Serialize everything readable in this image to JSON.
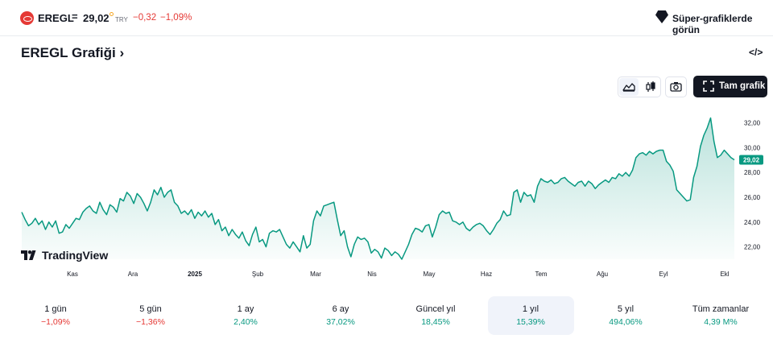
{
  "header": {
    "symbol": "EREGL",
    "equals": "=",
    "price": "29,02",
    "currency": "TRY",
    "change": "−0,32",
    "change_pct": "−1,09%",
    "super_charts_label": "Süper-grafiklerde görün"
  },
  "title": {
    "text": "EREGL Grafiği",
    "chevron": "›",
    "embed_icon": "code-icon",
    "embed_glyph": "</>"
  },
  "toolbar": {
    "fullscreen_label": "Tam grafik",
    "icons": [
      "area-chart-icon",
      "candlestick-icon",
      "camera-icon",
      "fullscreen-icon"
    ]
  },
  "watermark": {
    "text": "TradingView",
    "icon": "tradingview-logo-icon"
  },
  "colors": {
    "accent": "#089981",
    "negative": "#e53935",
    "text": "#131722",
    "active_bg": "#f0f3fa"
  },
  "chart_data": {
    "type": "area",
    "series": [
      {
        "values": [
          24.8,
          24.2,
          23.7,
          23.9,
          24.3,
          23.8,
          24.1,
          23.4,
          24.0,
          23.6,
          24.1,
          23.1,
          23.2,
          23.8,
          23.5,
          23.9,
          24.3,
          24.2,
          24.8,
          25.1,
          25.3,
          24.9,
          24.7,
          25.6,
          25.0,
          24.6,
          25.4,
          25.2,
          24.8,
          25.9,
          25.7,
          26.4,
          26.1,
          25.5,
          26.3,
          26.0,
          25.5,
          24.9,
          25.6,
          26.6,
          26.2,
          26.8,
          26.0,
          26.4,
          26.6,
          25.6,
          25.3,
          24.7,
          24.9,
          24.6,
          25.0,
          24.3,
          24.8,
          24.5,
          24.9,
          24.4,
          24.7,
          23.8,
          24.2,
          23.3,
          23.6,
          22.9,
          23.4,
          23.0,
          22.7,
          23.2,
          22.5,
          22.1,
          23.0,
          23.6,
          22.4,
          22.6,
          22.0,
          23.1,
          23.3,
          23.2,
          23.4,
          22.8,
          22.2,
          21.9,
          22.4,
          22.0,
          21.6,
          22.9,
          21.9,
          22.2,
          24.1,
          24.9,
          24.5,
          25.3,
          25.4,
          25.5,
          25.6,
          24.2,
          22.9,
          23.3,
          22.0,
          21.2,
          22.2,
          22.8,
          22.6,
          22.7,
          22.4,
          21.5,
          21.8,
          21.6,
          21.1,
          21.9,
          21.7,
          21.3,
          21.6,
          21.4,
          21.0,
          21.6,
          22.2,
          23.0,
          23.5,
          23.4,
          23.2,
          23.7,
          23.8,
          22.8,
          23.6,
          24.6,
          24.9,
          24.7,
          24.8,
          24.1,
          24.0,
          23.8,
          24.0,
          23.5,
          23.3,
          23.6,
          23.8,
          23.9,
          23.7,
          23.3,
          23.0,
          23.4,
          23.9,
          24.2,
          24.9,
          24.5,
          24.6,
          26.4,
          26.6,
          25.6,
          26.4,
          26.1,
          26.2,
          25.6,
          26.9,
          27.5,
          27.3,
          27.2,
          27.4,
          27.1,
          27.2,
          27.5,
          27.6,
          27.3,
          27.1,
          26.9,
          27.2,
          27.3,
          26.9,
          27.3,
          27.1,
          26.7,
          27.0,
          27.2,
          27.4,
          27.2,
          27.6,
          27.5,
          27.9,
          27.7,
          28.0,
          27.7,
          28.2,
          29.2,
          29.5,
          29.6,
          29.4,
          29.7,
          29.5,
          29.7,
          29.8,
          29.8,
          28.9,
          28.6,
          28.1,
          26.6,
          26.3,
          26.0,
          25.7,
          25.8,
          27.6,
          28.5,
          30.1,
          31.0,
          31.6,
          32.4,
          30.5,
          29.2,
          29.4,
          29.8,
          29.5,
          29.2,
          29.02
        ]
      }
    ],
    "ylim": [
      21.0,
      33.6
    ],
    "y_ticks": [
      22,
      24,
      26,
      28,
      30,
      32
    ],
    "y_tick_labels": [
      "22,00",
      "24,00",
      "26,00",
      "28,00",
      "30,00",
      "32,00"
    ],
    "x_tick_labels": [
      "Kas",
      "Ara",
      "2025",
      "Şub",
      "Mar",
      "Nis",
      "May",
      "Haz",
      "Tem",
      "Ağu",
      "Eyl",
      "Ekl"
    ],
    "last_price_label": "29,02",
    "line_color": "#089981",
    "grid": false
  },
  "periods": [
    {
      "label": "1 gün",
      "value": "−1,09%",
      "sign": "neg"
    },
    {
      "label": "5 gün",
      "value": "−1,36%",
      "sign": "neg"
    },
    {
      "label": "1 ay",
      "value": "2,40%",
      "sign": "pos"
    },
    {
      "label": "6 ay",
      "value": "37,02%",
      "sign": "pos"
    },
    {
      "label": "Güncel yıl",
      "value": "18,45%",
      "sign": "pos"
    },
    {
      "label": "1 yıl",
      "value": "15,39%",
      "sign": "pos",
      "active": true
    },
    {
      "label": "5 yıl",
      "value": "494,06%",
      "sign": "pos"
    },
    {
      "label": "Tüm zamanlar",
      "value": "4,39 M%",
      "sign": "pos"
    }
  ]
}
